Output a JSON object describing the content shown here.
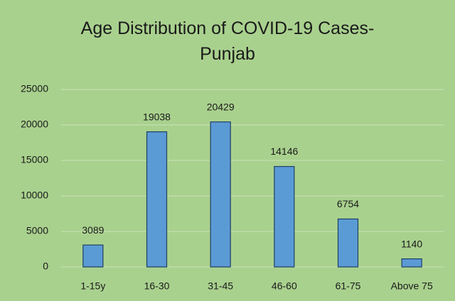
{
  "chart_data": {
    "type": "bar",
    "title": "Age Distribution of COVID-19 Cases-Punjab",
    "categories": [
      "1-15y",
      "16-30",
      "31-45",
      "46-60",
      "61-75",
      "Above 75"
    ],
    "values": [
      3089,
      19038,
      20429,
      14146,
      6754,
      1140
    ],
    "color": "#5b9bd5",
    "ylim": [
      0,
      25000
    ],
    "yticks": [
      0,
      5000,
      10000,
      15000,
      20000,
      25000
    ],
    "grid": true
  }
}
